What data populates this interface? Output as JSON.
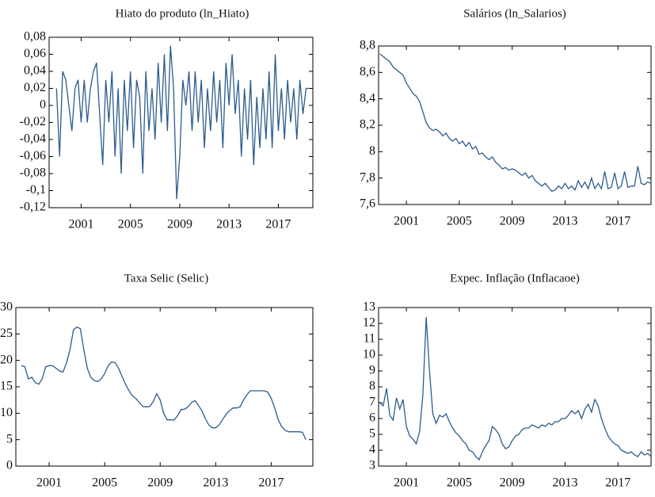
{
  "chart_data": [
    {
      "type": "line",
      "title": "Hiato do produto (ln_Hiato)",
      "color": "#2b5c8e",
      "xlim": [
        1998.4,
        2019.8
      ],
      "xticks": [
        2001,
        2005,
        2009,
        2013,
        2017
      ],
      "ylim": [
        -0.12,
        0.08
      ],
      "yticks": [
        {
          "value": -0.12,
          "label": "-0,12"
        },
        {
          "value": -0.1,
          "label": "-0,1"
        },
        {
          "value": -0.08,
          "label": "-0,08"
        },
        {
          "value": -0.06,
          "label": "-0,06"
        },
        {
          "value": -0.04,
          "label": "-0,04"
        },
        {
          "value": -0.02,
          "label": "-0,02"
        },
        0,
        {
          "value": 0.02,
          "label": "0,02"
        },
        {
          "value": 0.04,
          "label": "0,04"
        },
        {
          "value": 0.06,
          "label": "0,06"
        },
        {
          "value": 0.08,
          "label": "0,08"
        }
      ],
      "x": [
        1999,
        1999.25,
        1999.5,
        1999.75,
        2000,
        2000.25,
        2000.5,
        2000.75,
        2001,
        2001.25,
        2001.5,
        2001.75,
        2002,
        2002.25,
        2002.5,
        2002.75,
        2003,
        2003.25,
        2003.5,
        2003.75,
        2004,
        2004.25,
        2004.5,
        2004.75,
        2005,
        2005.25,
        2005.5,
        2005.75,
        2006,
        2006.25,
        2006.5,
        2006.75,
        2007,
        2007.25,
        2007.5,
        2007.75,
        2008,
        2008.25,
        2008.5,
        2008.75,
        2009,
        2009.25,
        2009.5,
        2009.75,
        2010,
        2010.25,
        2010.5,
        2010.75,
        2011,
        2011.25,
        2011.5,
        2011.75,
        2012,
        2012.25,
        2012.5,
        2012.75,
        2013,
        2013.25,
        2013.5,
        2013.75,
        2014,
        2014.25,
        2014.5,
        2014.75,
        2015,
        2015.25,
        2015.5,
        2015.75,
        2016,
        2016.25,
        2016.5,
        2016.75,
        2017,
        2017.25,
        2017.5,
        2017.75,
        2018,
        2018.25,
        2018.5,
        2018.75,
        2019,
        2019.25,
        2019.5
      ],
      "values": [
        0.02,
        -0.06,
        0.04,
        0.03,
        0.0,
        -0.03,
        0.02,
        0.03,
        -0.02,
        0.03,
        -0.02,
        0.02,
        0.04,
        0.05,
        -0.01,
        -0.07,
        0.03,
        -0.02,
        0.04,
        -0.06,
        0.02,
        -0.08,
        0.03,
        -0.03,
        0.04,
        -0.05,
        0.03,
        0.01,
        -0.08,
        0.04,
        -0.03,
        0.02,
        -0.04,
        0.05,
        -0.02,
        0.06,
        -0.03,
        0.07,
        0.02,
        -0.11,
        -0.06,
        0.03,
        0.0,
        0.04,
        -0.03,
        0.04,
        -0.02,
        0.03,
        -0.05,
        0.02,
        -0.03,
        0.04,
        -0.02,
        0.03,
        -0.05,
        0.05,
        0.0,
        0.06,
        -0.01,
        0.03,
        -0.06,
        0.02,
        -0.04,
        0.03,
        -0.07,
        0.01,
        -0.05,
        0.02,
        -0.04,
        0.04,
        -0.05,
        0.06,
        -0.03,
        0.02,
        -0.04,
        0.03,
        -0.02,
        0.02,
        -0.04,
        0.03,
        -0.01,
        0.02,
        0.02
      ]
    },
    {
      "type": "line",
      "title": "Salários (ln_Salarios)",
      "color": "#2b5c8e",
      "xlim": [
        1998.9,
        2019.5
      ],
      "xticks": [
        2001,
        2005,
        2009,
        2013,
        2017
      ],
      "ylim": [
        7.6,
        8.8
      ],
      "yticks": [
        {
          "value": 7.6,
          "label": "7,6"
        },
        {
          "value": 7.8,
          "label": "7,8"
        },
        8,
        {
          "value": 8.2,
          "label": "8,2"
        },
        {
          "value": 8.4,
          "label": "8,4"
        },
        {
          "value": 8.6,
          "label": "8,6"
        },
        {
          "value": 8.8,
          "label": "8,8"
        }
      ],
      "x": [
        1999,
        1999.25,
        1999.5,
        1999.75,
        2000,
        2000.25,
        2000.5,
        2000.75,
        2001,
        2001.25,
        2001.5,
        2001.75,
        2002,
        2002.25,
        2002.5,
        2002.75,
        2003,
        2003.25,
        2003.5,
        2003.75,
        2004,
        2004.25,
        2004.5,
        2004.75,
        2005,
        2005.25,
        2005.5,
        2005.75,
        2006,
        2006.25,
        2006.5,
        2006.75,
        2007,
        2007.25,
        2007.5,
        2007.75,
        2008,
        2008.25,
        2008.5,
        2008.75,
        2009,
        2009.25,
        2009.5,
        2009.75,
        2010,
        2010.25,
        2010.5,
        2010.75,
        2011,
        2011.25,
        2011.5,
        2011.75,
        2012,
        2012.25,
        2012.5,
        2012.75,
        2013,
        2013.25,
        2013.5,
        2013.75,
        2014,
        2014.25,
        2014.5,
        2014.75,
        2015,
        2015.25,
        2015.5,
        2015.75,
        2016,
        2016.25,
        2016.5,
        2016.75,
        2017,
        2017.25,
        2017.5,
        2017.75,
        2018,
        2018.25,
        2018.5,
        2018.75,
        2019,
        2019.25,
        2019.5
      ],
      "values": [
        8.74,
        8.72,
        8.7,
        8.68,
        8.64,
        8.62,
        8.6,
        8.58,
        8.52,
        8.48,
        8.44,
        8.42,
        8.38,
        8.3,
        8.22,
        8.18,
        8.16,
        8.17,
        8.15,
        8.12,
        8.14,
        8.1,
        8.08,
        8.1,
        8.06,
        8.08,
        8.04,
        8.07,
        8.02,
        8.04,
        7.98,
        7.99,
        7.96,
        7.94,
        7.96,
        7.92,
        7.9,
        7.87,
        7.88,
        7.86,
        7.87,
        7.86,
        7.84,
        7.82,
        7.84,
        7.8,
        7.82,
        7.78,
        7.76,
        7.74,
        7.76,
        7.73,
        7.7,
        7.71,
        7.74,
        7.72,
        7.76,
        7.72,
        7.74,
        7.71,
        7.78,
        7.73,
        7.77,
        7.72,
        7.8,
        7.72,
        7.76,
        7.72,
        7.85,
        7.72,
        7.73,
        7.84,
        7.72,
        7.74,
        7.85,
        7.73,
        7.74,
        7.74,
        7.89,
        7.76,
        7.75,
        7.77,
        7.76
      ]
    },
    {
      "type": "line",
      "title": "Taxa Selic (Selic)",
      "color": "#2b5c8e",
      "xlim": [
        1998.6,
        2020.0
      ],
      "xticks": [
        2001,
        2005,
        2009,
        2013,
        2017
      ],
      "ylim": [
        0,
        30
      ],
      "yticks": [
        0,
        5,
        10,
        15,
        20,
        25,
        30
      ],
      "x": [
        1999,
        1999.25,
        1999.5,
        1999.75,
        2000,
        2000.25,
        2000.5,
        2000.75,
        2001,
        2001.25,
        2001.5,
        2001.75,
        2002,
        2002.25,
        2002.5,
        2002.75,
        2003,
        2003.25,
        2003.5,
        2003.75,
        2004,
        2004.25,
        2004.5,
        2004.75,
        2005,
        2005.25,
        2005.5,
        2005.75,
        2006,
        2006.25,
        2006.5,
        2006.75,
        2007,
        2007.25,
        2007.5,
        2007.75,
        2008,
        2008.25,
        2008.5,
        2008.75,
        2009,
        2009.25,
        2009.5,
        2009.75,
        2010,
        2010.25,
        2010.5,
        2010.75,
        2011,
        2011.25,
        2011.5,
        2011.75,
        2012,
        2012.25,
        2012.5,
        2012.75,
        2013,
        2013.25,
        2013.5,
        2013.75,
        2014,
        2014.25,
        2014.5,
        2014.75,
        2015,
        2015.25,
        2015.5,
        2015.75,
        2016,
        2016.25,
        2016.5,
        2016.75,
        2017,
        2017.25,
        2017.5,
        2017.75,
        2018,
        2018.25,
        2018.5,
        2018.75,
        2019,
        2019.25,
        2019.5
      ],
      "values": [
        19,
        18.8,
        16.5,
        16.8,
        15.8,
        15.5,
        16.5,
        18.8,
        19,
        19,
        18.5,
        18,
        17.8,
        19.5,
        22,
        25.8,
        26.3,
        26,
        22,
        18.5,
        16.8,
        16.2,
        16,
        16.5,
        17.5,
        19,
        19.7,
        19.6,
        18.5,
        17,
        15.5,
        14.3,
        13.3,
        12.8,
        12,
        11.3,
        11.2,
        11.3,
        12.2,
        13.7,
        12.5,
        10,
        8.75,
        8.75,
        8.75,
        9.5,
        10.7,
        10.75,
        11.2,
        12,
        12.4,
        11.5,
        10.5,
        9,
        7.8,
        7.25,
        7.25,
        7.8,
        8.8,
        9.8,
        10.5,
        11,
        11,
        11.2,
        12.5,
        13.5,
        14.25,
        14.25,
        14.25,
        14.25,
        14.25,
        14,
        12.8,
        11,
        8.8,
        7.5,
        6.75,
        6.5,
        6.5,
        6.5,
        6.5,
        6.4,
        5
      ]
    },
    {
      "type": "line",
      "title": "Expec. Inflação (Inflacaoe)",
      "color": "#2b5c8e",
      "xlim": [
        1998.9,
        2019.5
      ],
      "xticks": [
        2001,
        2005,
        2009,
        2013,
        2017
      ],
      "ylim": [
        3,
        13
      ],
      "yticks": [
        3,
        4,
        5,
        6,
        7,
        8,
        9,
        10,
        11,
        12,
        13
      ],
      "x": [
        1999,
        1999.25,
        1999.5,
        1999.75,
        2000,
        2000.25,
        2000.5,
        2000.75,
        2001,
        2001.25,
        2001.5,
        2001.75,
        2002,
        2002.25,
        2002.5,
        2002.75,
        2003,
        2003.25,
        2003.5,
        2003.75,
        2004,
        2004.25,
        2004.5,
        2004.75,
        2005,
        2005.25,
        2005.5,
        2005.75,
        2006,
        2006.25,
        2006.5,
        2006.75,
        2007,
        2007.25,
        2007.5,
        2007.75,
        2008,
        2008.25,
        2008.5,
        2008.75,
        2009,
        2009.25,
        2009.5,
        2009.75,
        2010,
        2010.25,
        2010.5,
        2010.75,
        2011,
        2011.25,
        2011.5,
        2011.75,
        2012,
        2012.25,
        2012.5,
        2012.75,
        2013,
        2013.25,
        2013.5,
        2013.75,
        2014,
        2014.25,
        2014.5,
        2014.75,
        2015,
        2015.25,
        2015.5,
        2015.75,
        2016,
        2016.25,
        2016.5,
        2016.75,
        2017,
        2017.25,
        2017.5,
        2017.75,
        2018,
        2018.25,
        2018.5,
        2018.75,
        2019,
        2019.25,
        2019.5
      ],
      "values": [
        7,
        6.8,
        7.9,
        6.2,
        5.9,
        7.3,
        6.6,
        7.2,
        5.5,
        4.9,
        4.7,
        4.4,
        5.2,
        7.5,
        12.4,
        9,
        6.3,
        5.7,
        6.2,
        6.1,
        6.3,
        5.8,
        5.4,
        5.1,
        4.9,
        4.6,
        4.4,
        4,
        3.9,
        3.6,
        3.4,
        3.9,
        4.3,
        4.6,
        5.5,
        5.3,
        5,
        4.4,
        4.1,
        4.2,
        4.6,
        4.9,
        5,
        5.3,
        5.4,
        5.4,
        5.6,
        5.5,
        5.4,
        5.6,
        5.5,
        5.7,
        5.6,
        5.8,
        5.8,
        6,
        6,
        6.2,
        6.5,
        6.3,
        6.5,
        6,
        6.6,
        6.9,
        6.4,
        7.2,
        6.8,
        6,
        5.4,
        4.9,
        4.6,
        4.4,
        4.3,
        4,
        3.9,
        3.8,
        3.9,
        3.7,
        3.6,
        3.9,
        3.7,
        3.8,
        3.6
      ]
    }
  ]
}
